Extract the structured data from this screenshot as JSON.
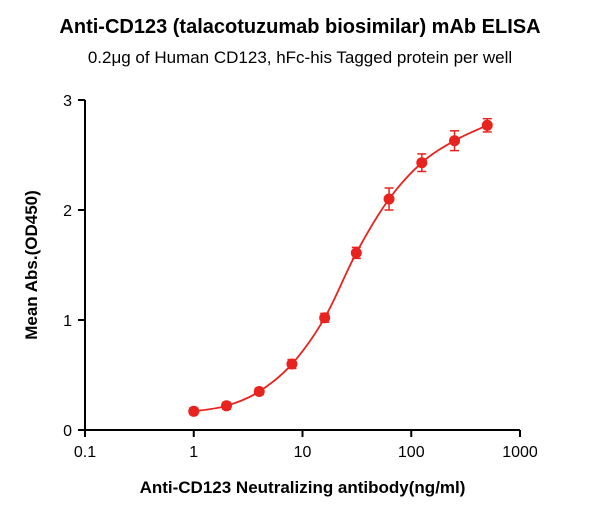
{
  "chart_data": {
    "type": "line",
    "title": "Anti-CD123 (talacotuzumab biosimilar) mAb ELISA",
    "subtitle": "0.2μg of Human CD123, hFc-his Tagged protein per well",
    "xlabel": "Anti-CD123 Neutralizing antibody(ng/ml)",
    "ylabel": "Mean Abs.(OD450)",
    "x_scale": "log10",
    "xlim": [
      0.1,
      1000
    ],
    "ylim": [
      0,
      3
    ],
    "x_ticks": [
      0.1,
      1,
      10,
      100,
      1000
    ],
    "x_tick_labels": [
      "0.1",
      "1",
      "10",
      "100",
      "1000"
    ],
    "y_ticks": [
      0,
      1,
      2,
      3
    ],
    "y_tick_labels": [
      "0",
      "1",
      "2",
      "3"
    ],
    "grid": false,
    "legend": "none",
    "series": [
      {
        "name": "Anti-CD123 neutralizing antibody",
        "color": "#e8231d",
        "marker": "circle",
        "x": [
          1,
          2,
          4,
          8,
          16,
          31.25,
          62.5,
          125,
          250,
          500
        ],
        "y": [
          0.17,
          0.22,
          0.35,
          0.6,
          1.02,
          1.61,
          2.1,
          2.43,
          2.63,
          2.77
        ],
        "y_err": [
          0.03,
          0.03,
          0.03,
          0.04,
          0.04,
          0.05,
          0.1,
          0.08,
          0.09,
          0.06
        ]
      }
    ]
  },
  "colors": {
    "accent": "#e8231d",
    "axis": "#000000",
    "background": "#ffffff"
  }
}
